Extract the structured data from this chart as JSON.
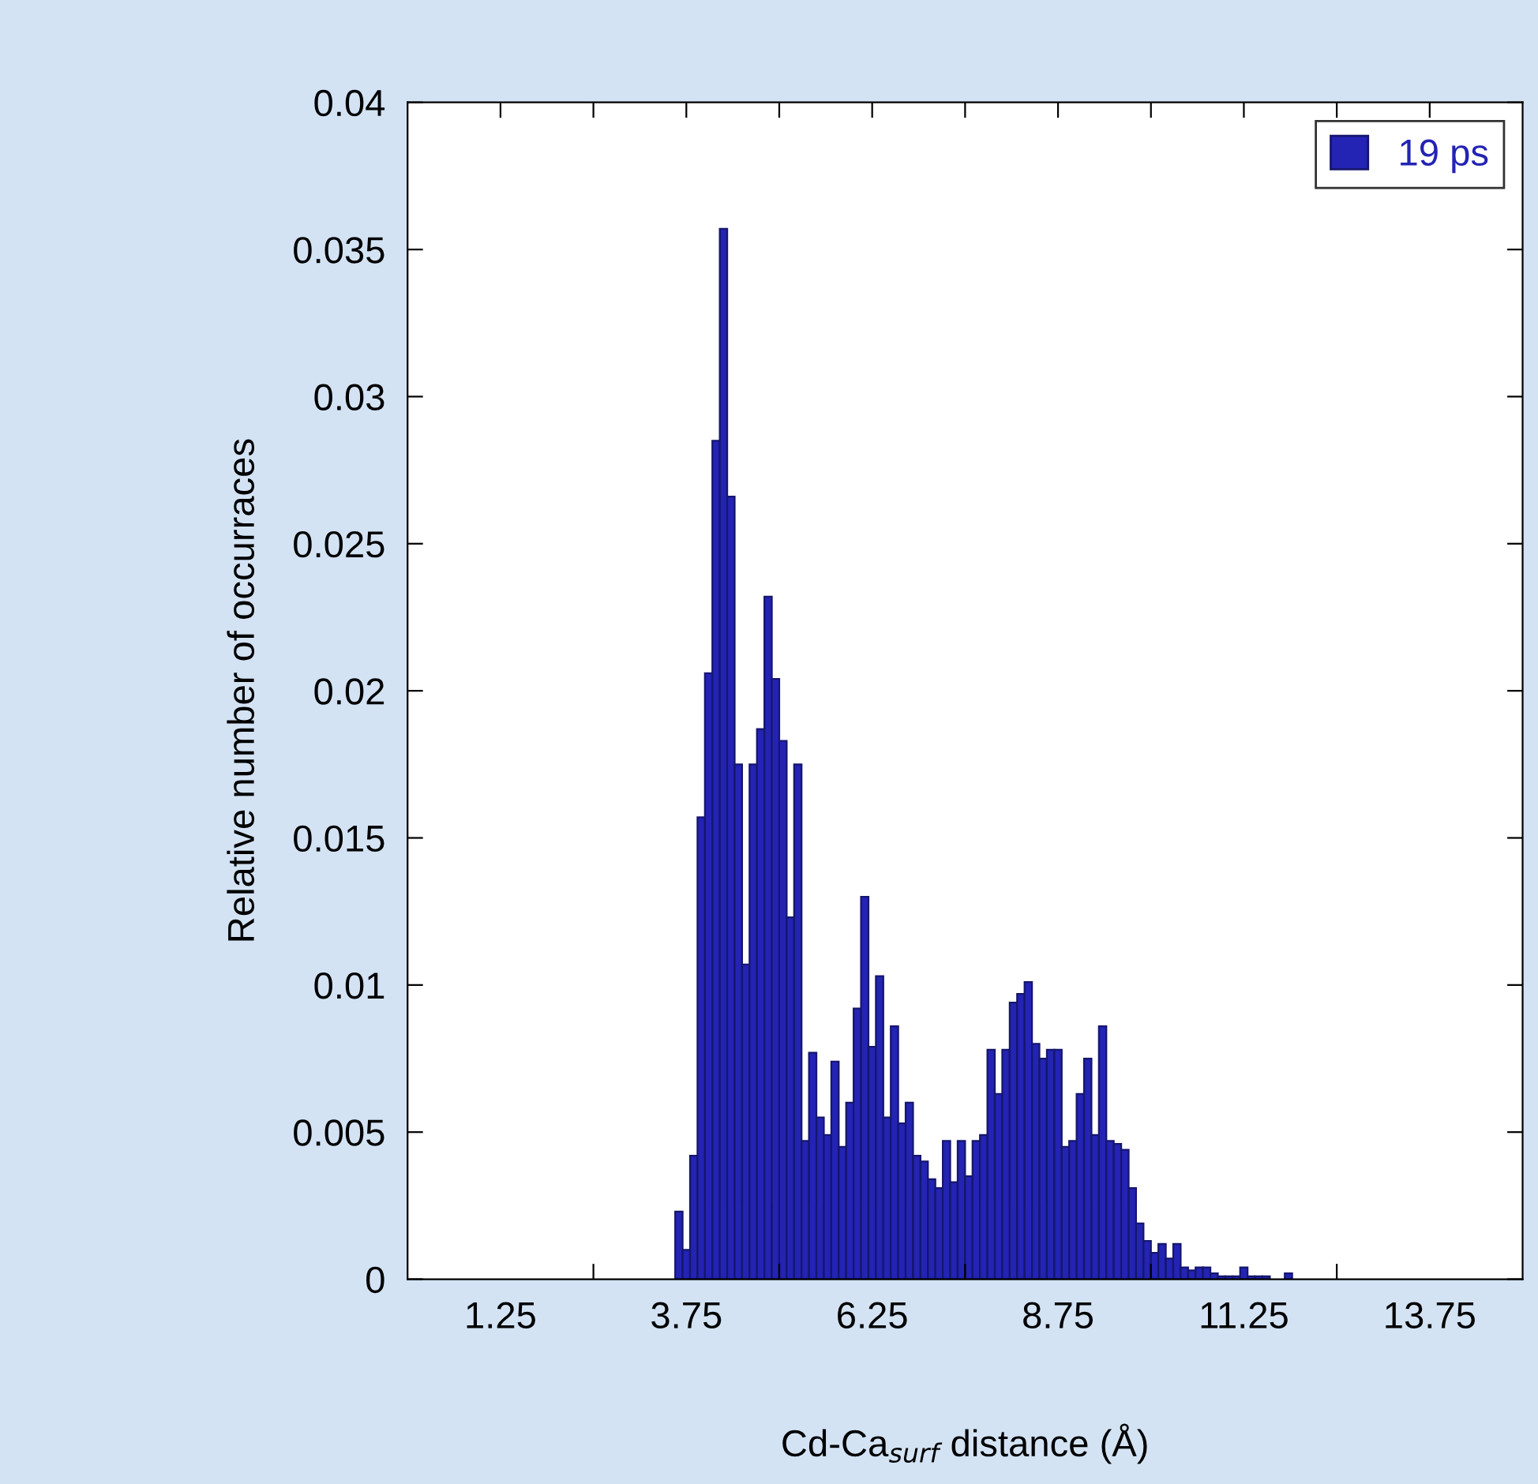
{
  "chart_data": {
    "type": "histogram",
    "xlabel": "Cd-Ca$_{surf}$ distance (Å)",
    "ylabel": "Relative number of occurraces",
    "bins": [
      3.6,
      3.7,
      3.8,
      3.9,
      4.0,
      4.1,
      4.2,
      4.3,
      4.4,
      4.5,
      4.6,
      4.7,
      4.8,
      4.9,
      5.0,
      5.1,
      5.2,
      5.3,
      5.4,
      5.5,
      5.6,
      5.7,
      5.8,
      5.9,
      6.0,
      6.1,
      6.2,
      6.3,
      6.4,
      6.5,
      6.6,
      6.7,
      6.8,
      6.9,
      7.0,
      7.1,
      7.2,
      7.3,
      7.4,
      7.5,
      7.6,
      7.7,
      7.8,
      7.9,
      8.0,
      8.1,
      8.2,
      8.3,
      8.4,
      8.5,
      8.6,
      8.7,
      8.8,
      8.9,
      9.0,
      9.1,
      9.2,
      9.3,
      9.4,
      9.5,
      9.6,
      9.7,
      9.8,
      9.9,
      10.0,
      10.1,
      10.2,
      10.3,
      10.4,
      10.5,
      10.6,
      10.7,
      10.8,
      10.9,
      11.0,
      11.1,
      11.2,
      11.3,
      11.4,
      11.5,
      11.6,
      11.7,
      11.8,
      11.9
    ],
    "series": [
      {
        "name": "19 ps",
        "color": "#2323b4",
        "values": [
          0.0023,
          0.001,
          0.0042,
          0.0157,
          0.0206,
          0.0285,
          0.0357,
          0.0266,
          0.0175,
          0.0107,
          0.0175,
          0.0187,
          0.0232,
          0.0204,
          0.0183,
          0.0123,
          0.0175,
          0.0047,
          0.0077,
          0.0055,
          0.0049,
          0.0074,
          0.0045,
          0.006,
          0.0092,
          0.013,
          0.0079,
          0.0103,
          0.0055,
          0.0086,
          0.0053,
          0.006,
          0.0042,
          0.004,
          0.0034,
          0.0031,
          0.0047,
          0.0033,
          0.0047,
          0.0035,
          0.0047,
          0.0049,
          0.0078,
          0.0063,
          0.0078,
          0.0094,
          0.0097,
          0.0101,
          0.008,
          0.0075,
          0.0078,
          0.0078,
          0.0045,
          0.0047,
          0.0063,
          0.0075,
          0.0049,
          0.0086,
          0.0047,
          0.0046,
          0.0044,
          0.0031,
          0.0019,
          0.0013,
          0.0009,
          0.0012,
          0.0007,
          0.0012,
          0.0004,
          0.0003,
          0.0004,
          0.0004,
          0.0002,
          0.0001,
          0.0001,
          0.0001,
          0.0004,
          0.0001,
          0.0001,
          0.0001,
          0,
          0,
          0.0002
        ]
      }
    ],
    "xlim": [
      0,
      15
    ],
    "xticks": [
      {
        "value": 1.25,
        "label": "1.25"
      },
      {
        "value": 2.5,
        "label": null
      },
      {
        "value": 3.75,
        "label": "3.75"
      },
      {
        "value": 5,
        "label": null
      },
      {
        "value": 6.25,
        "label": "6.25"
      },
      {
        "value": 7.5,
        "label": null
      },
      {
        "value": 8.75,
        "label": "8.75"
      },
      {
        "value": 10,
        "label": null
      },
      {
        "value": 11.25,
        "label": "11.25"
      },
      {
        "value": 12.5,
        "label": null
      },
      {
        "value": 13.75,
        "label": "13.75"
      }
    ],
    "ylim": [
      0,
      0.04
    ],
    "yticks": [
      0,
      0.005,
      0.01,
      0.015,
      0.02,
      0.025,
      0.03,
      0.035,
      0.04
    ],
    "grid": false,
    "legend": "top right"
  }
}
